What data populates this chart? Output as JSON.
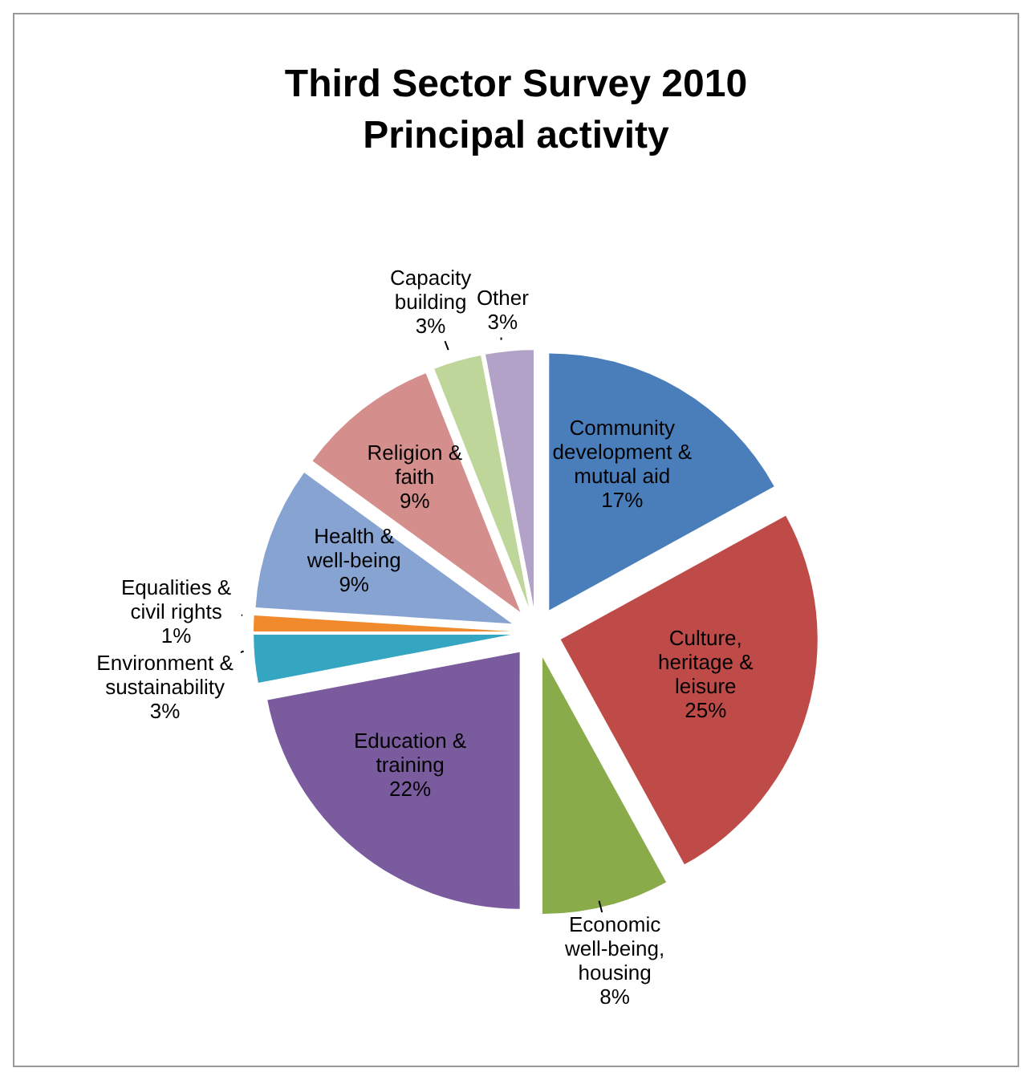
{
  "chart_data": {
    "type": "pie",
    "title": "Third Sector Survey 2010",
    "subtitle": "Principal activity",
    "categories": [
      "Community development & mutual aid",
      "Culture, heritage & leisure",
      "Economic well-being, housing",
      "Education & training",
      "Environment & sustainability",
      "Equalities & civil rights",
      "Health & well-being",
      "Religion & faith",
      "Capacity building",
      "Other"
    ],
    "values": [
      17,
      25,
      8,
      22,
      3,
      1,
      9,
      9,
      3,
      3
    ],
    "value_labels": [
      "17%",
      "25%",
      "8%",
      "22%",
      "3%",
      "1%",
      "9%",
      "9%",
      "3%",
      "3%"
    ],
    "colors": [
      "#4a7ebb",
      "#be4b48",
      "#8aab4a",
      "#7a5c9e",
      "#35a6c2",
      "#f08a2c",
      "#86a3d1",
      "#d48e8c",
      "#bfd69b",
      "#b3a2c7"
    ]
  }
}
